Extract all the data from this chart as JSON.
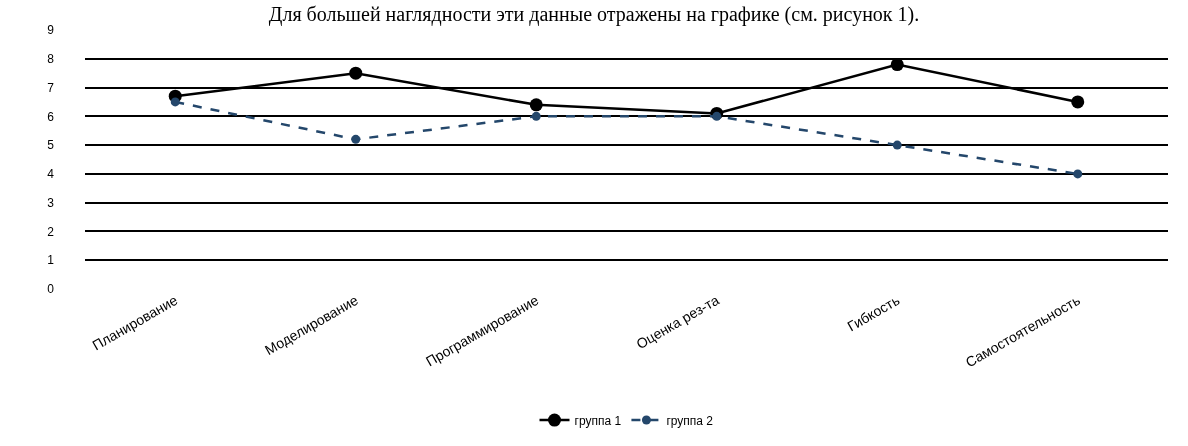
{
  "chart_data": {
    "type": "line",
    "title": "Для большей наглядности эти данные отражены на графике (см. рисунок 1).",
    "categories": [
      "Планирование",
      "Моделирование",
      "Программирование",
      "Оценка рез-та",
      "Гибкость",
      "Самостоятельность"
    ],
    "series": [
      {
        "name": "группа 1",
        "color": "#000000",
        "values": [
          6.7,
          7.5,
          6.4,
          6.1,
          7.8,
          6.5
        ],
        "line_style": "solid"
      },
      {
        "name": "группа 2",
        "color": "#24476b",
        "values": [
          6.5,
          5.2,
          6.0,
          6.0,
          5.0,
          4.0
        ],
        "line_style": "dashed"
      }
    ],
    "ylim": [
      0,
      9
    ],
    "yticks": [
      0,
      1,
      2,
      3,
      4,
      5,
      6,
      7,
      8,
      9
    ],
    "grid": "y",
    "legend": "bottom",
    "marker": "circle"
  }
}
